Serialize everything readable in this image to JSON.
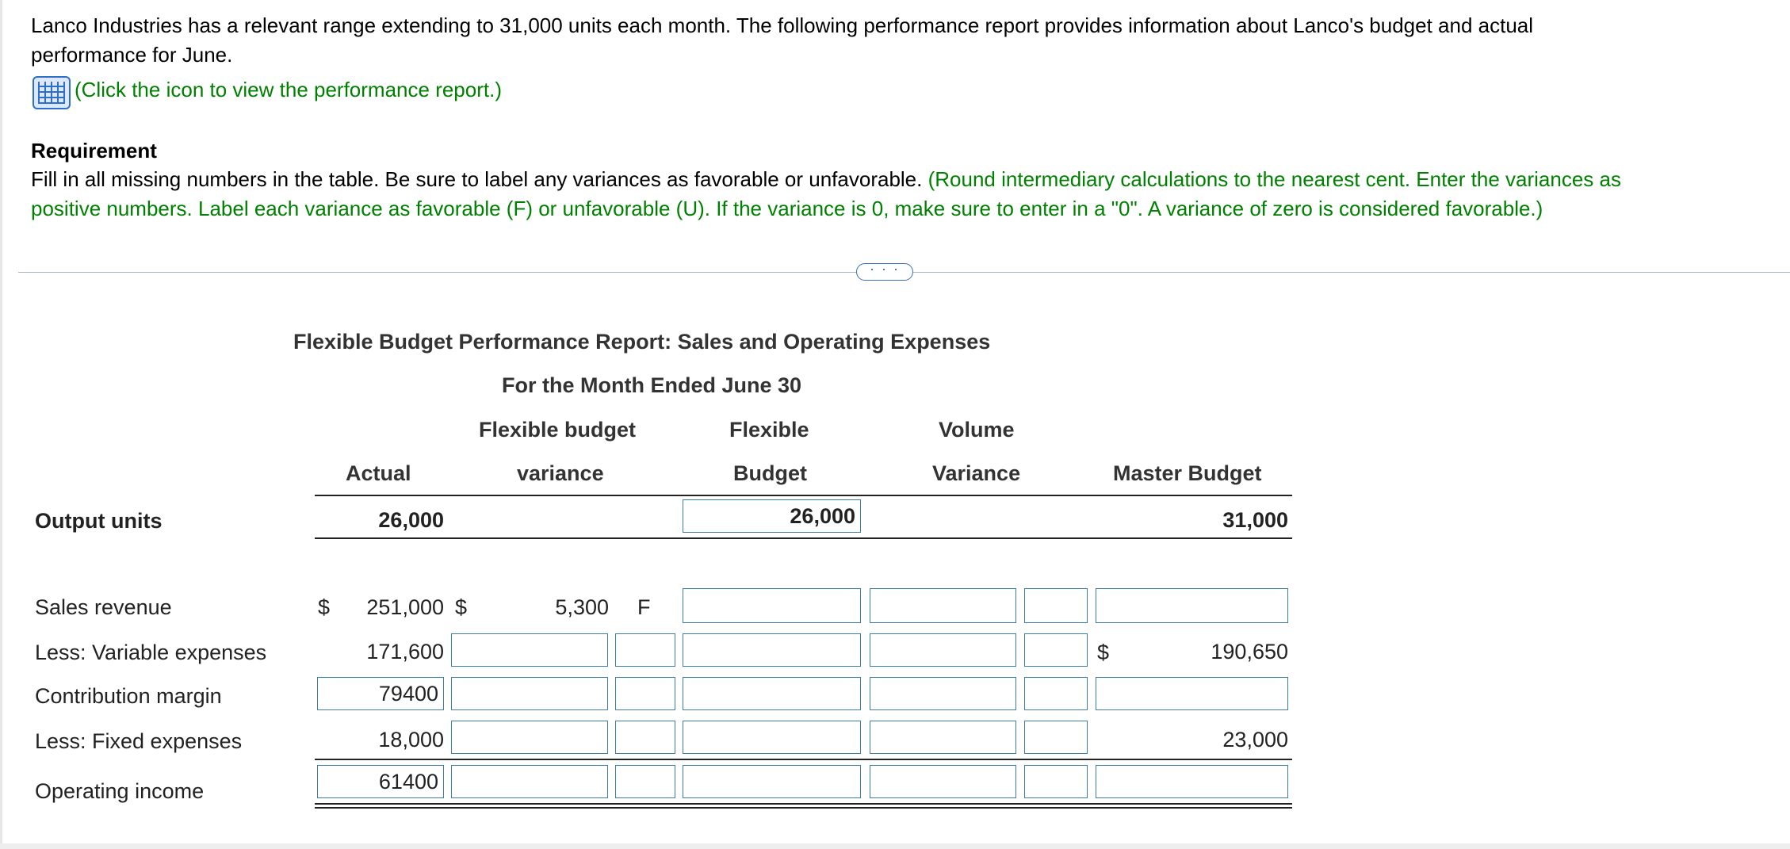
{
  "problem": {
    "intro_line1": "Lanco Industries has a relevant range extending to 31,000 units each month. The following performance report provides information about Lanco's budget and actual",
    "intro_line2": "performance for June.",
    "icon_link": "(Click the icon to view the performance report.)",
    "requirement_heading": "Requirement",
    "requirement_text": "Fill in all missing numbers in the table. Be sure to label any variances as favorable or unfavorable.",
    "requirement_note_line1": "(Round intermediary calculations to the nearest cent. Enter the variances as",
    "requirement_note_line2": "positive numbers. Label each variance as favorable (F) or unfavorable (U). If the variance is 0, make sure to enter in a \"0\". A variance of zero is considered favorable.)"
  },
  "more_button": "· · ·",
  "report": {
    "title": "Flexible Budget Performance Report: Sales and Operating Expenses",
    "subtitle": "For the Month Ended June 30",
    "col_actual": "Actual",
    "col_fbv_1": "Flexible budget",
    "col_fbv_2": "variance",
    "col_flex_1": "Flexible",
    "col_flex_2": "Budget",
    "col_vol_1": "Volume",
    "col_vol_2": "Variance",
    "col_master": "Master Budget",
    "dollar": "$",
    "rows": {
      "output_units": {
        "label": "Output units",
        "actual": "26,000",
        "flexible": "26,000",
        "master": "31,000"
      },
      "sales_revenue": {
        "label": "Sales revenue",
        "actual": "251,000",
        "fbv": "5,300",
        "fbv_fu": "F",
        "flexible": "",
        "volume": "",
        "vol_fu": "",
        "master": ""
      },
      "variable_expenses": {
        "label": "Less: Variable expenses",
        "actual": "171,600",
        "fbv": "",
        "fbv_fu": "",
        "flexible": "",
        "volume": "",
        "vol_fu": "",
        "master": "190,650"
      },
      "contribution_margin": {
        "label": "Contribution margin",
        "actual": "79400",
        "fbv": "",
        "fbv_fu": "",
        "flexible": "",
        "volume": "",
        "vol_fu": "",
        "master": ""
      },
      "fixed_expenses": {
        "label": "Less: Fixed expenses",
        "actual": "18,000",
        "fbv": "",
        "fbv_fu": "",
        "flexible": "",
        "volume": "",
        "vol_fu": "",
        "master": "23,000"
      },
      "operating_income": {
        "label": "Operating income",
        "actual": "61400",
        "fbv": "",
        "fbv_fu": "",
        "flexible": "",
        "volume": "",
        "vol_fu": "",
        "master": ""
      }
    }
  }
}
